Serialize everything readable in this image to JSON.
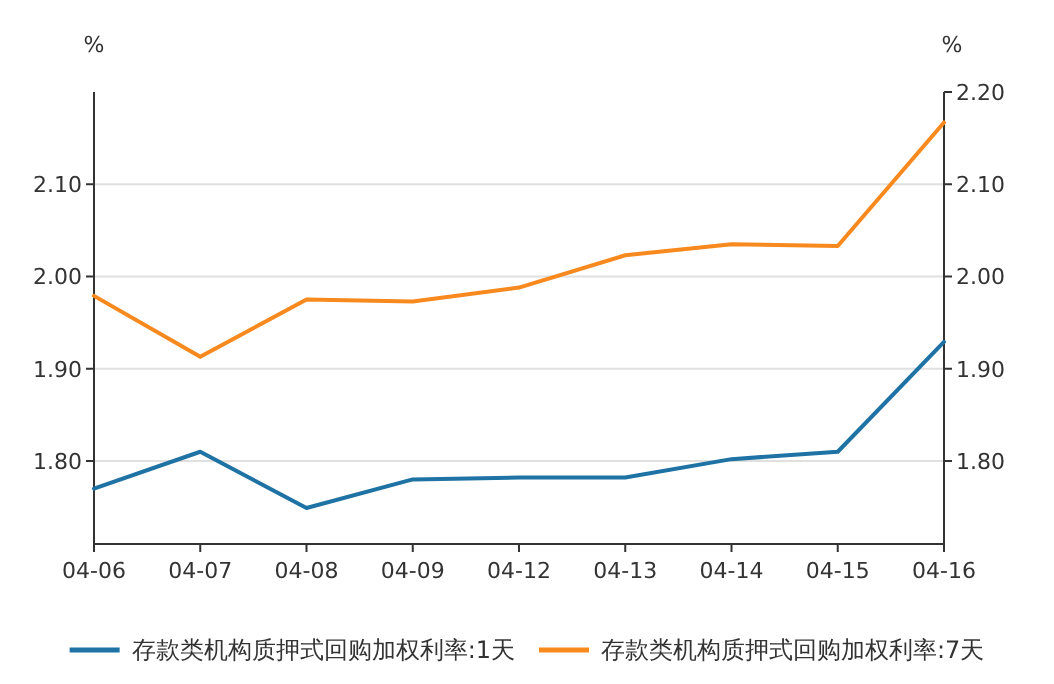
{
  "chart_data": {
    "type": "line",
    "ylabel": "%",
    "y2label": "%",
    "categories": [
      "04-06",
      "04-07",
      "04-08",
      "04-09",
      "04-12",
      "04-13",
      "04-14",
      "04-15",
      "04-16"
    ],
    "series": [
      {
        "name": "存款类机构质押式回购加权利率:1天",
        "color": "#1f72a4",
        "values": [
          1.77,
          1.81,
          1.749,
          1.78,
          1.782,
          1.782,
          1.802,
          1.81,
          1.929
        ]
      },
      {
        "name": "存款类机构质押式回购加权利率:7天",
        "color": "#f7891e",
        "values": [
          1.979,
          1.913,
          1.975,
          1.973,
          1.988,
          2.023,
          2.035,
          2.033,
          2.167
        ]
      }
    ],
    "ylim": [
      1.71,
      2.2
    ],
    "yticks": [
      {
        "value": 1.8,
        "label": "1.80"
      },
      {
        "value": 1.9,
        "label": "1.90"
      },
      {
        "value": 2.0,
        "label": "2.00"
      },
      {
        "value": 2.1,
        "label": "2.10"
      }
    ],
    "y2lim": [
      1.71,
      2.2
    ],
    "y2ticks": [
      {
        "value": 1.8,
        "label": "1.80"
      },
      {
        "value": 1.9,
        "label": "1.90"
      },
      {
        "value": 2.0,
        "label": "2.00"
      },
      {
        "value": 2.1,
        "label": "2.10"
      },
      {
        "value": 2.2,
        "label": "2.20"
      }
    ],
    "grid": "y",
    "legend": "bottom",
    "marker": "none",
    "line_style": "solid"
  }
}
